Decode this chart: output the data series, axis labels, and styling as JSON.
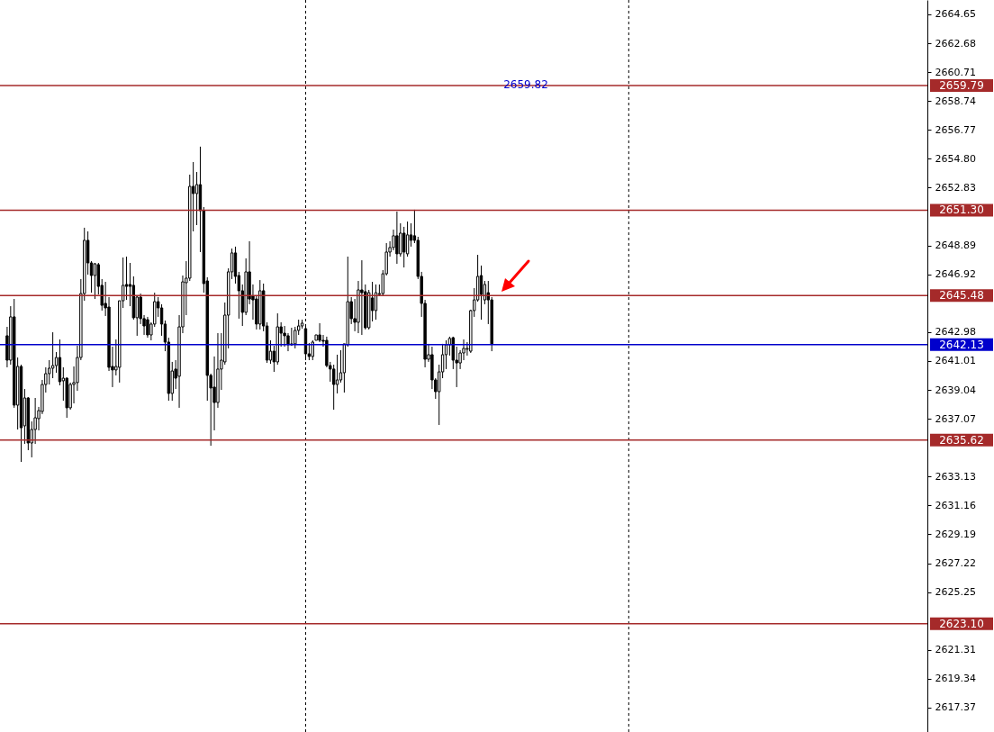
{
  "chart_data": {
    "type": "candlestick",
    "categories": [
      null,
      null,
      null,
      null,
      null,
      null,
      null,
      null,
      null,
      null,
      null,
      null,
      null,
      null,
      null,
      null,
      null,
      null,
      null,
      null,
      null,
      null,
      null,
      null,
      null,
      null,
      null,
      null,
      null,
      null,
      null,
      null,
      null,
      null,
      null,
      null,
      null,
      null,
      null,
      null,
      null,
      null,
      null,
      null,
      null,
      null,
      null,
      null,
      null,
      null,
      null,
      null,
      null,
      null,
      null,
      null,
      null,
      null,
      null,
      null,
      null,
      null,
      null,
      null,
      null,
      null,
      null,
      null,
      null,
      null,
      null,
      null,
      null,
      null,
      null,
      null,
      null,
      null,
      null,
      null,
      null,
      null,
      null,
      null,
      null,
      null,
      null,
      null,
      null,
      null,
      null,
      null,
      null,
      null,
      null,
      null,
      null,
      null,
      null,
      null,
      null,
      null,
      null,
      null,
      null,
      null,
      null,
      null,
      null,
      null,
      null,
      null,
      null,
      null,
      null,
      null,
      null,
      null,
      null,
      null,
      null,
      null,
      null,
      null,
      null,
      null,
      null,
      null,
      null,
      null,
      null,
      null,
      null,
      null,
      null,
      null,
      null,
      null,
      null,
      null,
      null,
      null,
      null,
      null,
      null,
      null,
      null,
      null,
      null,
      null,
      null,
      null,
      null,
      null,
      null,
      null,
      null,
      null,
      null,
      null,
      null,
      null,
      null,
      null,
      null,
      null,
      null,
      null,
      null,
      null,
      null,
      null,
      null,
      null,
      null,
      null,
      null,
      null,
      null,
      null,
      null,
      null,
      null,
      null,
      null,
      null,
      null,
      null,
      null,
      null,
      null,
      null,
      null,
      null,
      null,
      null,
      null,
      null,
      null,
      null,
      null,
      null,
      null,
      null,
      null,
      null,
      null,
      null,
      null,
      null,
      null,
      null,
      null,
      null,
      null,
      null,
      null,
      null,
      null,
      null,
      null,
      null,
      null,
      null,
      null,
      null,
      null,
      null,
      null,
      null,
      null,
      null,
      null,
      null,
      null,
      null,
      null,
      null,
      null,
      null,
      null,
      null,
      null,
      null,
      null,
      null,
      null,
      null,
      null,
      null,
      null,
      null,
      null,
      null,
      null,
      null,
      null,
      null,
      null,
      null,
      null
    ],
    "ohlc": [
      [
        2642.73,
        2643.34,
        2640.58,
        2641.07
      ],
      [
        2641.07,
        2644.75,
        2640.76,
        2644.02
      ],
      [
        2644.02,
        2645.24,
        2637.82,
        2638.0
      ],
      [
        2638.0,
        2641.25,
        2636.34,
        2640.64
      ],
      [
        2640.64,
        2640.76,
        2634.13,
        2636.46
      ],
      [
        2636.59,
        2639.1,
        2635.36,
        2638.49
      ],
      [
        2638.49,
        2638.55,
        2634.93,
        2635.42
      ],
      [
        2635.42,
        2636.89,
        2634.44,
        2636.34
      ],
      [
        2636.34,
        2638.49,
        2635.36,
        2637.14
      ],
      [
        2637.08,
        2637.88,
        2636.28,
        2637.63
      ],
      [
        2637.57,
        2639.72,
        2637.39,
        2639.41
      ],
      [
        2639.41,
        2640.58,
        2638.86,
        2640.15
      ],
      [
        2640.15,
        2641.07,
        2639.41,
        2640.52
      ],
      [
        2640.52,
        2642.97,
        2639.84,
        2640.7
      ],
      [
        2640.7,
        2641.62,
        2640.21,
        2641.25
      ],
      [
        2641.25,
        2642.48,
        2639.35,
        2639.6
      ],
      [
        2639.66,
        2640.58,
        2638.3,
        2639.84
      ],
      [
        2639.84,
        2639.9,
        2637.14,
        2637.82
      ],
      [
        2637.82,
        2639.54,
        2637.69,
        2639.41
      ],
      [
        2639.41,
        2640.64,
        2638.12,
        2639.54
      ],
      [
        2639.54,
        2642.05,
        2638.98,
        2641.25
      ],
      [
        2641.25,
        2646.6,
        2641.07,
        2645.61
      ],
      [
        2645.61,
        2650.1,
        2645.12,
        2649.24
      ],
      [
        2649.24,
        2649.85,
        2646.9,
        2647.7
      ],
      [
        2647.7,
        2647.82,
        2645.67,
        2646.84
      ],
      [
        2646.84,
        2647.7,
        2645.24,
        2647.64
      ],
      [
        2647.58,
        2647.7,
        2645.55,
        2646.1
      ],
      [
        2646.17,
        2646.6,
        2644.45,
        2644.81
      ],
      [
        2644.94,
        2646.41,
        2644.08,
        2644.63
      ],
      [
        2644.69,
        2645.37,
        2640.33,
        2640.58
      ],
      [
        2640.64,
        2641.99,
        2639.23,
        2640.4
      ],
      [
        2640.4,
        2642.48,
        2640.03,
        2640.64
      ],
      [
        2640.58,
        2645.12,
        2639.54,
        2645.12
      ],
      [
        2645.12,
        2648.07,
        2644.63,
        2646.17
      ],
      [
        2646.23,
        2648.13,
        2645.18,
        2646.1
      ],
      [
        2646.23,
        2647.7,
        2644.75,
        2646.1
      ],
      [
        2646.17,
        2646.78,
        2643.83,
        2643.96
      ],
      [
        2643.96,
        2645.49,
        2642.73,
        2645.37
      ],
      [
        2645.37,
        2645.61,
        2643.53,
        2643.9
      ],
      [
        2643.9,
        2644.14,
        2642.79,
        2643.4
      ],
      [
        2643.83,
        2644.02,
        2642.6,
        2642.79
      ],
      [
        2642.79,
        2643.65,
        2642.42,
        2643.53
      ],
      [
        2643.53,
        2645.67,
        2643.34,
        2645.06
      ],
      [
        2645.06,
        2645.37,
        2644.02,
        2644.63
      ],
      [
        2644.63,
        2644.88,
        2642.73,
        2643.53
      ],
      [
        2643.53,
        2643.77,
        2641.68,
        2642.3
      ],
      [
        2642.3,
        2642.6,
        2638.3,
        2638.8
      ],
      [
        2638.8,
        2640.95,
        2638.3,
        2640.33
      ],
      [
        2640.46,
        2641.07,
        2639.1,
        2639.84
      ],
      [
        2639.97,
        2644.14,
        2637.82,
        2643.34
      ],
      [
        2643.34,
        2646.84,
        2642.91,
        2646.41
      ],
      [
        2646.35,
        2647.82,
        2644.14,
        2646.66
      ],
      [
        2646.66,
        2653.72,
        2646.47,
        2652.92
      ],
      [
        2652.92,
        2654.58,
        2649.85,
        2652.43
      ],
      [
        2652.43,
        2653.9,
        2650.28,
        2653.04
      ],
      [
        2653.04,
        2655.63,
        2648.44,
        2651.26
      ],
      [
        2651.26,
        2651.51,
        2645.67,
        2646.29
      ],
      [
        2646.47,
        2646.72,
        2638.3,
        2640.03
      ],
      [
        2640.03,
        2640.15,
        2635.23,
        2639.17
      ],
      [
        2639.23,
        2641.32,
        2636.28,
        2638.18
      ],
      [
        2638.18,
        2642.91,
        2637.82,
        2640.46
      ],
      [
        2640.46,
        2642.91,
        2639.04,
        2641.07
      ],
      [
        2640.95,
        2645.0,
        2640.76,
        2644.14
      ],
      [
        2644.14,
        2647.33,
        2641.87,
        2647.09
      ],
      [
        2647.09,
        2648.68,
        2646.6,
        2648.38
      ],
      [
        2648.38,
        2648.81,
        2646.29,
        2646.78
      ],
      [
        2646.84,
        2647.09,
        2643.9,
        2645.8
      ],
      [
        2645.8,
        2646.23,
        2643.4,
        2644.33
      ],
      [
        2644.33,
        2648.01,
        2644.14,
        2647.09
      ],
      [
        2647.09,
        2649.18,
        2644.88,
        2645.24
      ],
      [
        2645.43,
        2646.23,
        2643.83,
        2645.18
      ],
      [
        2645.24,
        2645.49,
        2643.16,
        2643.53
      ],
      [
        2643.53,
        2646.53,
        2643.16,
        2645.8
      ],
      [
        2645.8,
        2646.29,
        2643.04,
        2643.4
      ],
      [
        2643.4,
        2643.65,
        2640.88,
        2641.07
      ],
      [
        2641.07,
        2642.42,
        2640.82,
        2641.68
      ],
      [
        2641.68,
        2642.05,
        2640.27,
        2640.95
      ],
      [
        2640.95,
        2644.26,
        2640.76,
        2643.34
      ],
      [
        2643.34,
        2643.65,
        2641.99,
        2642.91
      ],
      [
        2642.91,
        2643.4,
        2641.99,
        2642.73
      ],
      [
        2642.73,
        2642.91,
        2641.68,
        2642.12
      ],
      [
        2642.12,
        2643.28,
        2642.05,
        2642.18
      ],
      [
        2642.18,
        2643.34,
        2641.87,
        2643.1
      ],
      [
        2643.1,
        2643.83,
        2642.79,
        2643.4
      ],
      [
        2643.4,
        2643.83,
        2643.22,
        2643.59
      ],
      [
        2643.22,
        2643.53,
        2641.07,
        2641.5
      ],
      [
        2641.5,
        2642.24,
        2641.07,
        2641.32
      ],
      [
        2641.32,
        2642.42,
        2641.07,
        2642.3
      ],
      [
        2642.42,
        2642.79,
        2642.42,
        2642.79
      ],
      [
        2642.79,
        2643.59,
        2642.3,
        2642.42
      ],
      [
        2642.42,
        2642.79,
        2641.99,
        2642.36
      ],
      [
        2642.42,
        2642.67,
        2640.58,
        2640.7
      ],
      [
        2640.7,
        2640.95,
        2639.6,
        2640.46
      ],
      [
        2640.46,
        2640.76,
        2637.69,
        2639.41
      ],
      [
        2639.41,
        2641.44,
        2638.8,
        2639.72
      ],
      [
        2639.72,
        2641.75,
        2639.54,
        2640.21
      ],
      [
        2640.21,
        2642.18,
        2638.86,
        2642.18
      ],
      [
        2642.12,
        2648.13,
        2641.99,
        2645.06
      ],
      [
        2645.06,
        2645.37,
        2643.53,
        2643.9
      ],
      [
        2643.9,
        2645.24,
        2643.04,
        2643.65
      ],
      [
        2643.65,
        2646.47,
        2642.91,
        2645.86
      ],
      [
        2645.86,
        2647.88,
        2642.79,
        2645.67
      ],
      [
        2645.74,
        2646.23,
        2643.16,
        2643.28
      ],
      [
        2643.28,
        2645.86,
        2643.16,
        2645.67
      ],
      [
        2645.31,
        2646.41,
        2643.71,
        2644.45
      ],
      [
        2644.45,
        2646.23,
        2643.83,
        2645.67
      ],
      [
        2645.55,
        2646.23,
        2645.43,
        2645.61
      ],
      [
        2645.61,
        2647.21,
        2645.49,
        2646.96
      ],
      [
        2646.96,
        2649.05,
        2646.84,
        2648.44
      ],
      [
        2648.44,
        2649.18,
        2648.13,
        2648.75
      ],
      [
        2648.75,
        2649.97,
        2648.56,
        2649.55
      ],
      [
        2649.55,
        2651.2,
        2647.64,
        2648.32
      ],
      [
        2648.32,
        2650.4,
        2648.13,
        2649.73
      ],
      [
        2649.73,
        2650.16,
        2647.39,
        2648.44
      ],
      [
        2648.32,
        2650.52,
        2648.13,
        2649.61
      ],
      [
        2649.61,
        2650.4,
        2648.81,
        2649.24
      ],
      [
        2649.55,
        2651.33,
        2649.05,
        2649.24
      ],
      [
        2649.24,
        2649.48,
        2646.6,
        2646.78
      ],
      [
        2646.78,
        2647.09,
        2644.02,
        2644.94
      ],
      [
        2644.94,
        2645.18,
        2640.58,
        2641.13
      ],
      [
        2641.13,
        2642.18,
        2640.95,
        2641.44
      ],
      [
        2641.44,
        2641.99,
        2639.1,
        2639.72
      ],
      [
        2639.72,
        2639.84,
        2638.43,
        2638.92
      ],
      [
        2638.92,
        2640.76,
        2636.65,
        2640.27
      ],
      [
        2640.27,
        2642.18,
        2639.84,
        2641.44
      ],
      [
        2641.44,
        2642.42,
        2640.46,
        2642.12
      ],
      [
        2642.12,
        2642.67,
        2641.38,
        2642.55
      ],
      [
        2642.6,
        2642.67,
        2640.46,
        2641.07
      ],
      [
        2641.07,
        2641.99,
        2639.23,
        2640.88
      ],
      [
        2640.88,
        2641.75,
        2640.46,
        2641.56
      ],
      [
        2641.56,
        2642.48,
        2641.07,
        2641.87
      ],
      [
        2641.81,
        2642.3,
        2641.38,
        2641.87
      ],
      [
        2641.68,
        2644.51,
        2641.56,
        2644.45
      ],
      [
        2644.45,
        2645.98,
        2644.02,
        2645.18
      ],
      [
        2645.18,
        2648.25,
        2645.06,
        2646.78
      ],
      [
        2646.84,
        2647.52,
        2643.83,
        2645.55
      ],
      [
        2645.18,
        2646.47,
        2644.88,
        2646.23
      ],
      [
        2645.67,
        2646.47,
        2643.53,
        2645.18
      ],
      [
        2645.18,
        2645.37,
        2641.68,
        2642.18
      ],
      null,
      null,
      null,
      null,
      null,
      null,
      null,
      null,
      null,
      null,
      null,
      null,
      null,
      null,
      null,
      null,
      null,
      null,
      null,
      null,
      null,
      null,
      null,
      null,
      null,
      null,
      null,
      null,
      null,
      null,
      null,
      null,
      null,
      null,
      null,
      null,
      null,
      null,
      null,
      null,
      null,
      null,
      null,
      null,
      null,
      null,
      null,
      null,
      null,
      null,
      null,
      null,
      null,
      null,
      null,
      null,
      null,
      null,
      null,
      null,
      null,
      null,
      null,
      null,
      null,
      null,
      null,
      null,
      null,
      null,
      null,
      null,
      null,
      null,
      null,
      null,
      null,
      null,
      null,
      null,
      null,
      null,
      null,
      null,
      null,
      null,
      null,
      null,
      null,
      null,
      null,
      null,
      null,
      null,
      null,
      null,
      null,
      null,
      null,
      null,
      null,
      null,
      null,
      null,
      null,
      null,
      null,
      null,
      null,
      null,
      null,
      null,
      null,
      null,
      null,
      null,
      null,
      null,
      null,
      null,
      null,
      null
    ],
    "ylim": [
      2615.71,
      2665.63
    ],
    "yticks": [
      2617.37,
      2619.34,
      2621.31,
      2625.25,
      2627.22,
      2629.19,
      2631.16,
      2633.13,
      2637.07,
      2639.04,
      2641.01,
      2642.98,
      2646.92,
      2648.89,
      2652.83,
      {
        "value": 2654.8,
        "label": "2654.80"
      },
      2656.77,
      2658.74,
      2660.71,
      2662.68,
      2664.65
    ],
    "ref_lines": [
      {
        "axis": "y",
        "value": 2659.79,
        "label": "2659.79",
        "color": "#a52a2a"
      },
      {
        "axis": "y",
        "value": 2651.3,
        "label": "2651.30",
        "color": "#a52a2a"
      },
      {
        "axis": "y",
        "value": 2645.48,
        "label": "2645.48",
        "color": "#a52a2a"
      },
      {
        "axis": "y",
        "value": 2642.13,
        "label": "2642.13",
        "color": "#0000cc"
      },
      {
        "axis": "y",
        "value": 2635.62,
        "label": "2635.62",
        "color": "#a52a2a"
      },
      {
        "axis": "y",
        "value": 2623.1,
        "label": "2623.10",
        "color": "#a52a2a"
      }
    ],
    "annotations": [
      {
        "text": "2659.82",
        "y": 2659.82
      }
    ]
  }
}
